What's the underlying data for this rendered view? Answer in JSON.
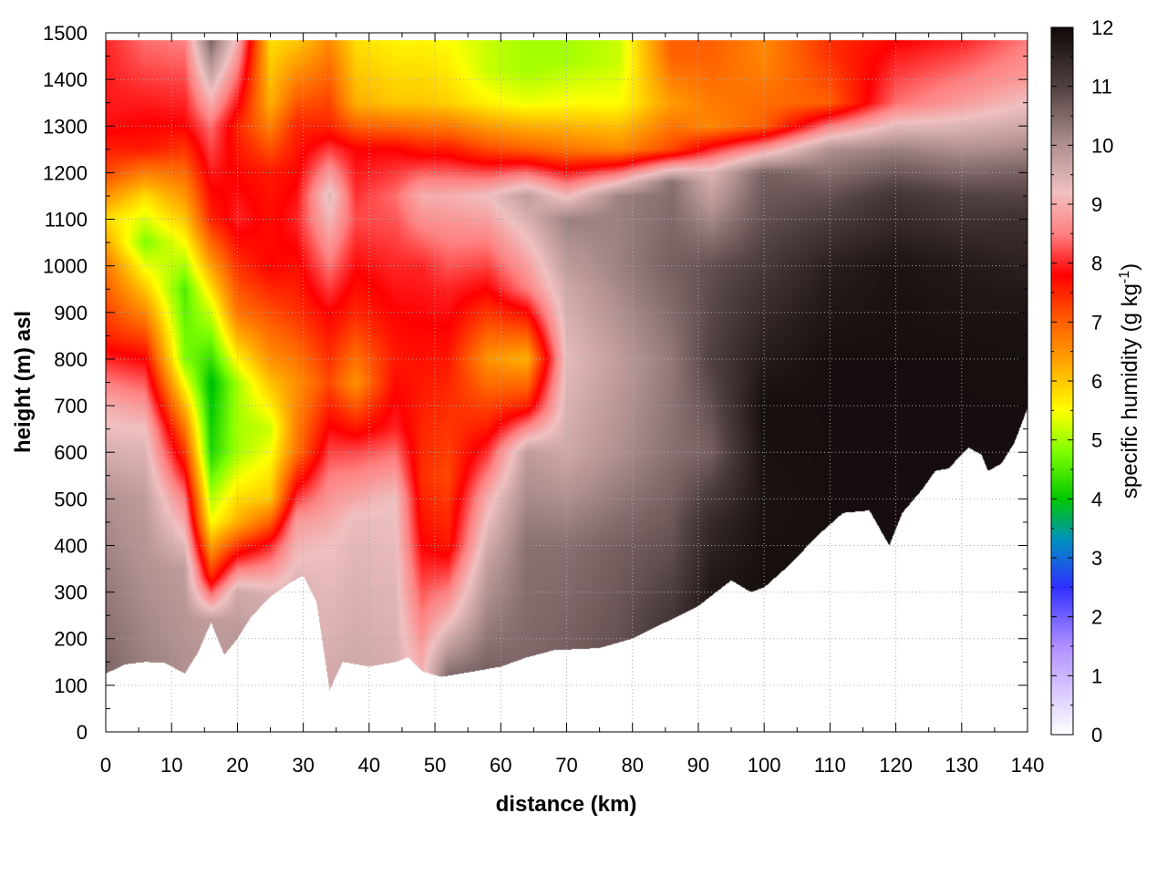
{
  "chart_data": {
    "type": "heatmap",
    "xlabel": "distance (km)",
    "ylabel": "height (m) asl",
    "xlim": [
      0,
      140
    ],
    "ylim": [
      0,
      1500
    ],
    "x_ticks": [
      0,
      10,
      20,
      30,
      40,
      50,
      60,
      70,
      80,
      90,
      100,
      110,
      120,
      130,
      140
    ],
    "y_ticks": [
      0,
      100,
      200,
      300,
      400,
      500,
      600,
      700,
      800,
      900,
      1000,
      1100,
      1200,
      1300,
      1400,
      1500
    ],
    "grid": true,
    "colorbar": {
      "label_main": "specific humidity (g kg",
      "label_sup": "-1",
      "label_end": ")",
      "range": [
        0,
        12
      ],
      "ticks": [
        0,
        1,
        2,
        3,
        4,
        5,
        6,
        7,
        8,
        9,
        10,
        11,
        12
      ],
      "placement": "right",
      "colormap": [
        {
          "v": 0,
          "color": "#ffffff"
        },
        {
          "v": 1.5,
          "color": "#b090ff"
        },
        {
          "v": 2.5,
          "color": "#3030ff"
        },
        {
          "v": 3.3,
          "color": "#0090c0"
        },
        {
          "v": 4,
          "color": "#00c800"
        },
        {
          "v": 4.8,
          "color": "#80ff00"
        },
        {
          "v": 5.5,
          "color": "#ffff00"
        },
        {
          "v": 6.2,
          "color": "#ffb000"
        },
        {
          "v": 7,
          "color": "#ff6000"
        },
        {
          "v": 7.8,
          "color": "#ff0000"
        },
        {
          "v": 8.5,
          "color": "#ff8080"
        },
        {
          "v": 9.2,
          "color": "#f0c0c0"
        },
        {
          "v": 10,
          "color": "#b09090"
        },
        {
          "v": 11,
          "color": "#504040"
        },
        {
          "v": 12,
          "color": "#100808"
        }
      ]
    },
    "ground_height_m": [
      [
        0,
        125
      ],
      [
        3,
        145
      ],
      [
        6,
        150
      ],
      [
        9,
        148
      ],
      [
        12,
        125
      ],
      [
        14,
        170
      ],
      [
        16,
        235
      ],
      [
        18,
        165
      ],
      [
        20,
        200
      ],
      [
        22,
        245
      ],
      [
        25,
        290
      ],
      [
        28,
        320
      ],
      [
        30,
        335
      ],
      [
        32,
        280
      ],
      [
        34,
        90
      ],
      [
        36,
        150
      ],
      [
        40,
        140
      ],
      [
        44,
        150
      ],
      [
        46,
        160
      ],
      [
        48,
        130
      ],
      [
        51,
        118
      ],
      [
        56,
        130
      ],
      [
        60,
        140
      ],
      [
        64,
        160
      ],
      [
        68,
        175
      ],
      [
        75,
        180
      ],
      [
        80,
        200
      ],
      [
        85,
        235
      ],
      [
        90,
        270
      ],
      [
        95,
        325
      ],
      [
        98,
        300
      ],
      [
        100,
        310
      ],
      [
        104,
        360
      ],
      [
        108,
        420
      ],
      [
        112,
        470
      ],
      [
        116,
        475
      ],
      [
        119,
        400
      ],
      [
        121,
        470
      ],
      [
        124,
        520
      ],
      [
        126,
        560
      ],
      [
        128,
        565
      ],
      [
        131,
        610
      ],
      [
        133,
        595
      ],
      [
        134,
        560
      ],
      [
        136,
        575
      ],
      [
        138,
        620
      ],
      [
        140,
        695
      ]
    ],
    "humidity_samples": [
      {
        "x": 0,
        "profile": [
          [
            150,
            10.5
          ],
          [
            500,
            10.0
          ],
          [
            700,
            9.0
          ],
          [
            850,
            7.5
          ],
          [
            1000,
            6.8
          ],
          [
            1100,
            5.8
          ],
          [
            1200,
            7.2
          ],
          [
            1300,
            7.9
          ],
          [
            1480,
            8.0
          ]
        ]
      },
      {
        "x": 6,
        "profile": [
          [
            150,
            10.2
          ],
          [
            500,
            9.8
          ],
          [
            650,
            9.2
          ],
          [
            800,
            7.8
          ],
          [
            950,
            6.0
          ],
          [
            1050,
            4.8
          ],
          [
            1150,
            5.8
          ],
          [
            1250,
            7.6
          ],
          [
            1480,
            8.4
          ]
        ]
      },
      {
        "x": 12,
        "profile": [
          [
            150,
            10.0
          ],
          [
            350,
            9.8
          ],
          [
            500,
            8.5
          ],
          [
            650,
            6.8
          ],
          [
            800,
            4.8
          ],
          [
            950,
            4.5
          ],
          [
            1100,
            6.0
          ],
          [
            1300,
            7.8
          ],
          [
            1480,
            8.5
          ]
        ]
      },
      {
        "x": 16,
        "profile": [
          [
            240,
            9.8
          ],
          [
            330,
            7.5
          ],
          [
            450,
            5.5
          ],
          [
            600,
            4.2
          ],
          [
            750,
            3.9
          ],
          [
            900,
            5.2
          ],
          [
            1100,
            7.5
          ],
          [
            1300,
            8.4
          ],
          [
            1480,
            10.5
          ]
        ]
      },
      {
        "x": 20,
        "profile": [
          [
            200,
            9.9
          ],
          [
            300,
            9.6
          ],
          [
            450,
            6.2
          ],
          [
            600,
            5.0
          ],
          [
            750,
            5.0
          ],
          [
            900,
            6.8
          ],
          [
            1100,
            8.0
          ],
          [
            1300,
            7.5
          ],
          [
            1480,
            9.0
          ]
        ]
      },
      {
        "x": 25,
        "profile": [
          [
            290,
            9.5
          ],
          [
            400,
            8.0
          ],
          [
            500,
            6.0
          ],
          [
            650,
            5.2
          ],
          [
            800,
            6.5
          ],
          [
            1000,
            7.8
          ],
          [
            1200,
            7.6
          ],
          [
            1350,
            6.2
          ],
          [
            1480,
            5.8
          ]
        ]
      },
      {
        "x": 29,
        "profile": [
          [
            330,
            9.4
          ],
          [
            450,
            8.8
          ],
          [
            600,
            6.8
          ],
          [
            750,
            6.5
          ],
          [
            900,
            7.4
          ],
          [
            1100,
            8.0
          ],
          [
            1300,
            7.5
          ],
          [
            1480,
            6.0
          ]
        ]
      },
      {
        "x": 34,
        "profile": [
          [
            100,
            9.6
          ],
          [
            400,
            9.2
          ],
          [
            550,
            8.5
          ],
          [
            750,
            7.2
          ],
          [
            900,
            7.8
          ],
          [
            1150,
            9.4
          ],
          [
            1300,
            7.5
          ],
          [
            1480,
            6.6
          ]
        ]
      },
      {
        "x": 38,
        "profile": [
          [
            150,
            9.6
          ],
          [
            450,
            9.3
          ],
          [
            600,
            8.2
          ],
          [
            750,
            6.5
          ],
          [
            900,
            7.5
          ],
          [
            1100,
            8.2
          ],
          [
            1250,
            7.8
          ],
          [
            1350,
            6.2
          ],
          [
            1480,
            5.8
          ]
        ]
      },
      {
        "x": 44,
        "profile": [
          [
            150,
            9.5
          ],
          [
            500,
            9.2
          ],
          [
            650,
            8.0
          ],
          [
            800,
            7.6
          ],
          [
            1000,
            8.0
          ],
          [
            1150,
            8.4
          ],
          [
            1250,
            7.8
          ],
          [
            1350,
            6.0
          ],
          [
            1480,
            5.6
          ]
        ]
      },
      {
        "x": 48,
        "profile": [
          [
            140,
            9.0
          ],
          [
            250,
            8.5
          ],
          [
            400,
            7.8
          ],
          [
            550,
            7.4
          ],
          [
            750,
            7.6
          ],
          [
            1000,
            8.0
          ],
          [
            1150,
            9.0
          ],
          [
            1250,
            7.6
          ],
          [
            1350,
            6.0
          ],
          [
            1480,
            5.6
          ]
        ]
      },
      {
        "x": 52,
        "profile": [
          [
            120,
            10.5
          ],
          [
            250,
            9.0
          ],
          [
            400,
            7.6
          ],
          [
            550,
            7.2
          ],
          [
            750,
            7.5
          ],
          [
            950,
            8.0
          ],
          [
            1150,
            9.0
          ],
          [
            1250,
            7.6
          ],
          [
            1350,
            5.9
          ],
          [
            1480,
            5.5
          ]
        ]
      },
      {
        "x": 58,
        "profile": [
          [
            130,
            10.6
          ],
          [
            350,
            9.8
          ],
          [
            500,
            9.0
          ],
          [
            650,
            7.6
          ],
          [
            800,
            6.5
          ],
          [
            950,
            7.8
          ],
          [
            1150,
            9.2
          ],
          [
            1250,
            7.2
          ],
          [
            1350,
            5.6
          ],
          [
            1420,
            5.2
          ]
        ]
      },
      {
        "x": 64,
        "profile": [
          [
            150,
            10.5
          ],
          [
            400,
            10.4
          ],
          [
            600,
            9.8
          ],
          [
            700,
            7.5
          ],
          [
            800,
            6.2
          ],
          [
            950,
            8.5
          ],
          [
            1150,
            9.8
          ],
          [
            1250,
            7.0
          ],
          [
            1350,
            5.4
          ],
          [
            1420,
            5.0
          ]
        ]
      },
      {
        "x": 70,
        "profile": [
          [
            175,
            10.6
          ],
          [
            400,
            10.4
          ],
          [
            600,
            9.6
          ],
          [
            800,
            9.3
          ],
          [
            950,
            9.6
          ],
          [
            1100,
            10.2
          ],
          [
            1250,
            6.8
          ],
          [
            1350,
            5.5
          ],
          [
            1440,
            5.0
          ]
        ]
      },
      {
        "x": 78,
        "profile": [
          [
            185,
            10.8
          ],
          [
            400,
            10.6
          ],
          [
            600,
            10.0
          ],
          [
            800,
            9.8
          ],
          [
            1000,
            10.2
          ],
          [
            1150,
            10.2
          ],
          [
            1250,
            6.6
          ],
          [
            1350,
            5.5
          ],
          [
            1440,
            5.2
          ]
        ]
      },
      {
        "x": 86,
        "profile": [
          [
            230,
            11.2
          ],
          [
            400,
            10.8
          ],
          [
            600,
            10.4
          ],
          [
            800,
            10.3
          ],
          [
            1000,
            10.6
          ],
          [
            1180,
            10.4
          ],
          [
            1250,
            7.2
          ],
          [
            1350,
            6.4
          ],
          [
            1450,
            7.0
          ]
        ]
      },
      {
        "x": 92,
        "profile": [
          [
            280,
            11.8
          ],
          [
            450,
            11.4
          ],
          [
            600,
            10.6
          ],
          [
            800,
            11.0
          ],
          [
            1000,
            10.8
          ],
          [
            1200,
            9.4
          ],
          [
            1300,
            6.6
          ],
          [
            1450,
            7.0
          ]
        ]
      },
      {
        "x": 100,
        "profile": [
          [
            310,
            11.9
          ],
          [
            500,
            11.8
          ],
          [
            700,
            11.9
          ],
          [
            900,
            11.4
          ],
          [
            1100,
            10.8
          ],
          [
            1200,
            10.6
          ],
          [
            1300,
            7.0
          ],
          [
            1450,
            6.6
          ]
        ]
      },
      {
        "x": 110,
        "profile": [
          [
            440,
            11.9
          ],
          [
            600,
            11.9
          ],
          [
            800,
            11.9
          ],
          [
            1000,
            11.6
          ],
          [
            1150,
            10.8
          ],
          [
            1250,
            10.0
          ],
          [
            1350,
            7.0
          ],
          [
            1450,
            7.4
          ]
        ]
      },
      {
        "x": 120,
        "profile": [
          [
            430,
            11.9
          ],
          [
            600,
            11.9
          ],
          [
            800,
            11.9
          ],
          [
            1000,
            11.8
          ],
          [
            1150,
            11.2
          ],
          [
            1250,
            10.2
          ],
          [
            1350,
            8.4
          ],
          [
            1480,
            7.8
          ]
        ]
      },
      {
        "x": 130,
        "profile": [
          [
            600,
            11.9
          ],
          [
            800,
            11.9
          ],
          [
            1000,
            11.7
          ],
          [
            1150,
            11.0
          ],
          [
            1250,
            10.0
          ],
          [
            1350,
            8.8
          ],
          [
            1480,
            8.0
          ]
        ]
      },
      {
        "x": 140,
        "profile": [
          [
            700,
            11.9
          ],
          [
            900,
            11.8
          ],
          [
            1100,
            11.3
          ],
          [
            1200,
            10.6
          ],
          [
            1300,
            9.6
          ],
          [
            1400,
            8.8
          ],
          [
            1480,
            8.5
          ]
        ]
      }
    ]
  }
}
